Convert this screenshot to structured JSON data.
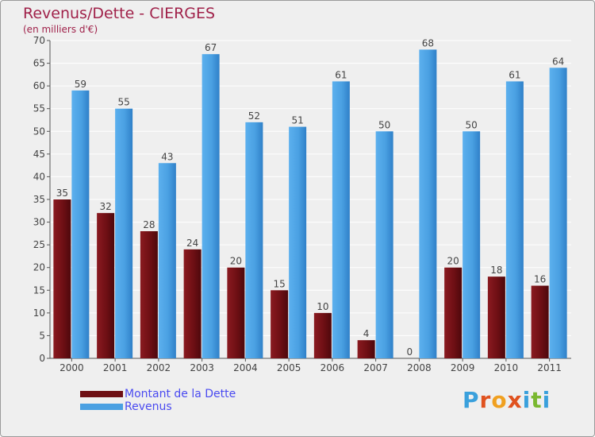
{
  "title": "Revenus/Dette - CIERGES",
  "subtitle": "(en milliers d'€)",
  "logo_text": "Proxiti",
  "colors": {
    "debt": "#6e0f14",
    "revenue": "#4aa0e2",
    "background": "#efefef",
    "grid": "#ffffff",
    "axis_text": "#444444",
    "title": "#a0224a",
    "legend_text": "#4a4af0"
  },
  "legend": [
    {
      "label": "Montant de la Dette",
      "color": "#6e0f14"
    },
    {
      "label": "Revenus",
      "color": "#4aa0e2"
    }
  ],
  "chart_data": {
    "type": "bar",
    "title": "Revenus/Dette - CIERGES",
    "ylabel": "(en milliers d'€)",
    "xlabel": "",
    "categories": [
      "2000",
      "2001",
      "2002",
      "2003",
      "2004",
      "2005",
      "2006",
      "2007",
      "2008",
      "2009",
      "2010",
      "2011"
    ],
    "series": [
      {
        "name": "Montant de la Dette",
        "values": [
          35,
          32,
          28,
          24,
          20,
          15,
          10,
          4,
          0,
          20,
          18,
          16
        ]
      },
      {
        "name": "Revenus",
        "values": [
          59,
          55,
          43,
          67,
          52,
          51,
          61,
          50,
          68,
          50,
          61,
          64
        ]
      }
    ],
    "ylim": [
      0,
      70
    ],
    "yticks": [
      0,
      5,
      10,
      15,
      20,
      25,
      30,
      35,
      40,
      45,
      50,
      55,
      60,
      65,
      70
    ],
    "grid": true,
    "legend_position": "bottom-left"
  }
}
